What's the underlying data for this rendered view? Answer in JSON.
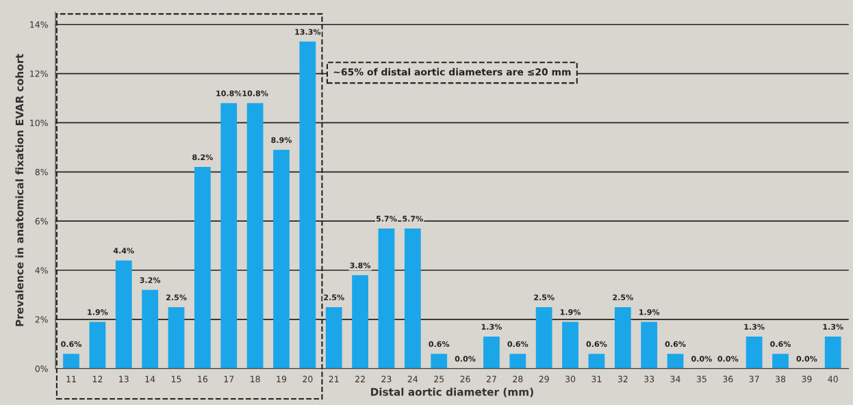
{
  "chart_data": {
    "type": "bar",
    "xlabel": "Distal aortic diameter (mm)",
    "ylabel": "Prevalence in anatomical fixation EVAR cohort",
    "categories": [
      "11",
      "12",
      "13",
      "14",
      "15",
      "16",
      "17",
      "18",
      "19",
      "20",
      "21",
      "22",
      "23",
      "24",
      "25",
      "26",
      "27",
      "28",
      "29",
      "30",
      "31",
      "32",
      "33",
      "34",
      "35",
      "36",
      "37",
      "38",
      "39",
      "40"
    ],
    "values": [
      0.6,
      1.9,
      4.4,
      3.2,
      2.5,
      8.2,
      10.8,
      10.8,
      8.9,
      13.3,
      2.5,
      3.8,
      5.7,
      5.7,
      0.6,
      0.0,
      1.3,
      0.6,
      2.5,
      1.9,
      0.6,
      2.5,
      1.9,
      0.6,
      0.0,
      0.0,
      1.3,
      0.6,
      0.0,
      1.3
    ],
    "value_labels": [
      "0.6%",
      "1.9%",
      "4.4%",
      "3.2%",
      "2.5%",
      "8.2%",
      "10.8%",
      "10.8%",
      "8.9%",
      "13.3%",
      "2.5%",
      "3.8%",
      "5.7%",
      "5.7%",
      "0.6%",
      "0.0%",
      "1.3%",
      "0.6%",
      "2.5%",
      "1.9%",
      "0.6%",
      "2.5%",
      "1.9%",
      "0.6%",
      "0.0%",
      "0.0%",
      "1.3%",
      "0.6%",
      "0.0%",
      "1.3%"
    ],
    "color": "#1ba6ea",
    "ylim": [
      0,
      14.5
    ],
    "yticks": [
      {
        "value": 0,
        "label": "0%"
      },
      {
        "value": 2,
        "label": "2%"
      },
      {
        "value": 4,
        "label": "4%"
      },
      {
        "value": 6,
        "label": "6%"
      },
      {
        "value": 8,
        "label": "8%"
      },
      {
        "value": 10,
        "label": "10%"
      },
      {
        "value": 12,
        "label": "12%"
      },
      {
        "value": 14,
        "label": "14%"
      }
    ],
    "grid": "y",
    "annotations": [
      "~65% of distal aortic diameters are ≤20 mm"
    ]
  }
}
